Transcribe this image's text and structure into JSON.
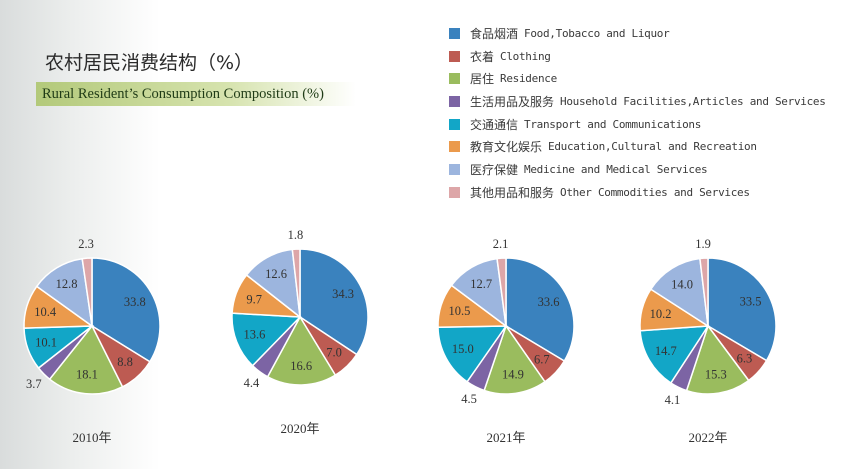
{
  "header": {
    "title_cn": "农村居民消费结构（%）",
    "title_en": "Rural Resident’s Consumption Composition (%)"
  },
  "legend": [
    {
      "cn": "食品烟酒",
      "en": "Food,Tobacco and Liquor",
      "color": "#3a82be"
    },
    {
      "cn": "衣着",
      "en": "Clothing",
      "color": "#bd5b52"
    },
    {
      "cn": "居住",
      "en": "Residence",
      "color": "#9abc5e"
    },
    {
      "cn": "生活用品及服务",
      "en": "Household Facilities,Articles and Services",
      "color": "#7c64a4"
    },
    {
      "cn": "交通通信",
      "en": "Transport and Communications",
      "color": "#12a6c7"
    },
    {
      "cn": "教育文化娱乐",
      "en": "Education,Cultural and Recreation",
      "color": "#eb9a4c"
    },
    {
      "cn": "医疗保健",
      "en": "Medicine and Medical Services",
      "color": "#9cb5de"
    },
    {
      "cn": "其他用品和服务",
      "en": "Other Commodities and Services",
      "color": "#dda6a8"
    }
  ],
  "chart_data": [
    {
      "type": "pie",
      "title": "2010年",
      "values": [
        33.8,
        8.8,
        18.1,
        3.7,
        10.1,
        10.4,
        12.8,
        2.3
      ]
    },
    {
      "type": "pie",
      "title": "2020年",
      "values": [
        34.3,
        7.0,
        16.6,
        4.4,
        13.6,
        9.7,
        12.6,
        1.8
      ]
    },
    {
      "type": "pie",
      "title": "2021年",
      "values": [
        33.6,
        6.7,
        14.9,
        4.5,
        15.0,
        10.5,
        12.7,
        2.1
      ]
    },
    {
      "type": "pie",
      "title": "2022年",
      "values": [
        33.5,
        6.3,
        15.3,
        4.1,
        14.7,
        10.2,
        14.0,
        1.9
      ]
    }
  ]
}
